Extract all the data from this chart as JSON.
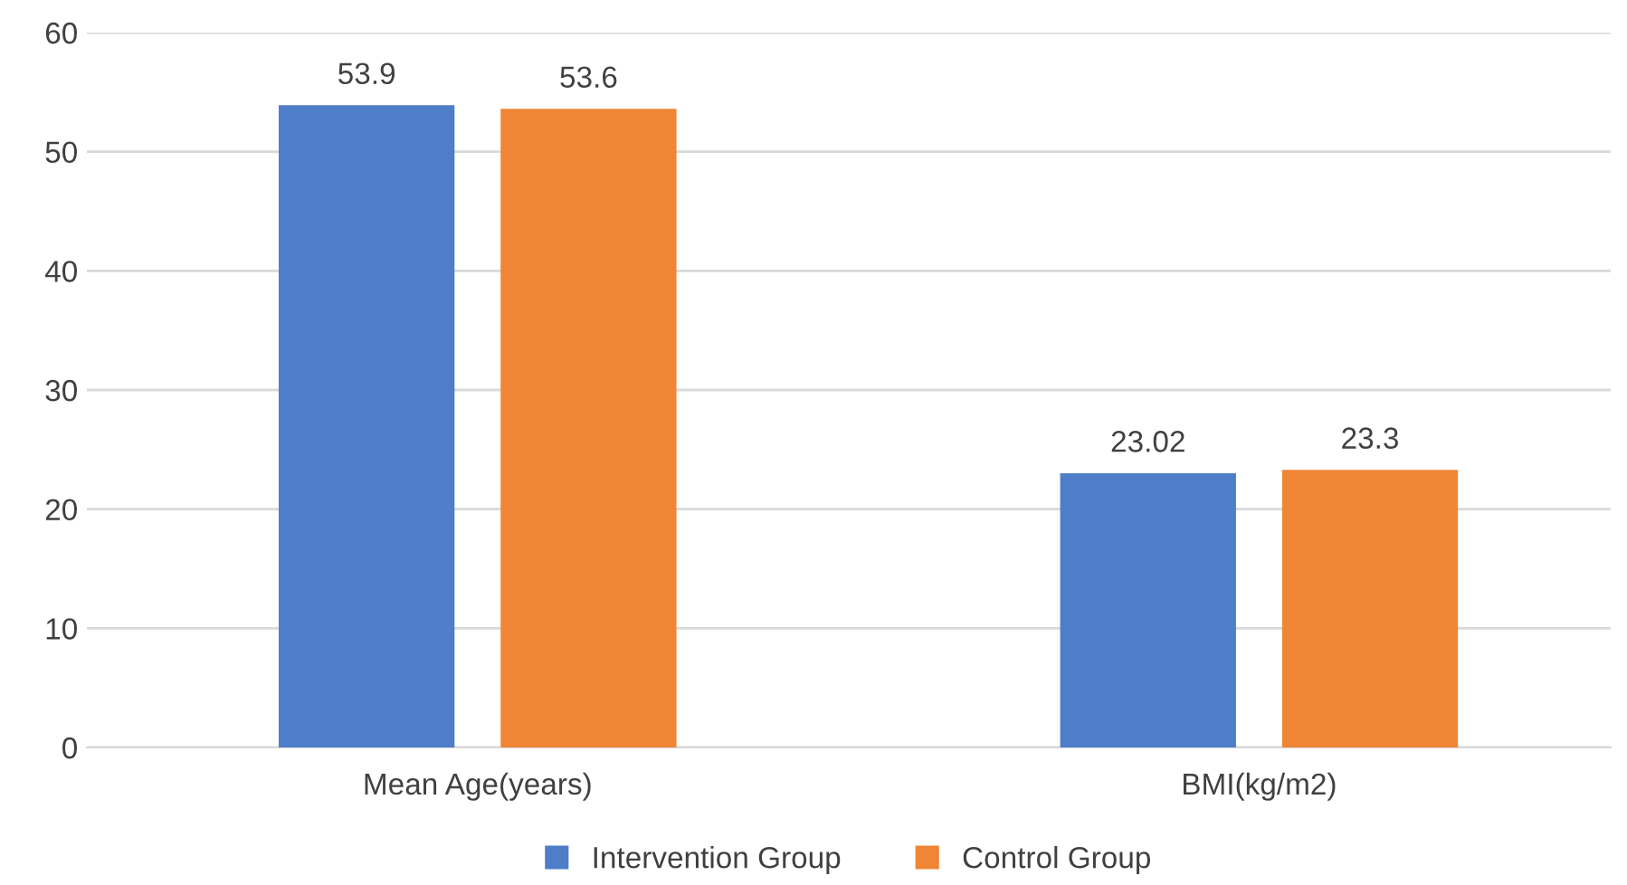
{
  "chart_data": {
    "type": "bar",
    "categories": [
      "Mean Age(years)",
      "BMI(kg/m2)"
    ],
    "series": [
      {
        "name": "Intervention Group",
        "color": "#4e7dc9",
        "values": [
          53.9,
          23.02
        ]
      },
      {
        "name": "Control Group",
        "color": "#ee8636",
        "values": [
          53.6,
          23.3
        ]
      }
    ],
    "ylim": [
      0,
      60
    ],
    "yticks": [
      0,
      10,
      20,
      30,
      40,
      50,
      60
    ],
    "grid": "y",
    "legend": "bottom",
    "data_labels": true
  }
}
